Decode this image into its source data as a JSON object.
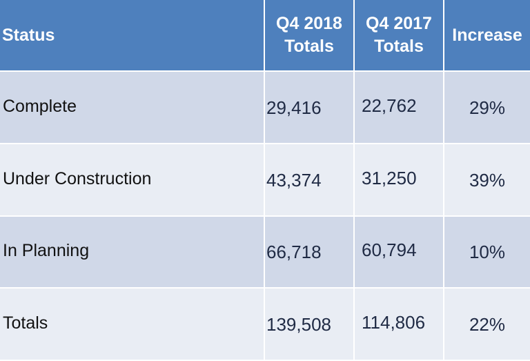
{
  "table": {
    "headers": {
      "status": "Status",
      "q4_2018": [
        "Q4 2018",
        "Totals"
      ],
      "q4_2017": [
        "Q4 2017",
        "Totals"
      ],
      "increase": "Increase"
    },
    "rows": [
      {
        "status": "Complete",
        "q4_2018": "29,416",
        "q4_2017": "22,762",
        "increase": "29%"
      },
      {
        "status": "Under Construction",
        "q4_2018": "43,374",
        "q4_2017": "31,250",
        "increase": "39%"
      },
      {
        "status": "In Planning",
        "q4_2018": "66,718",
        "q4_2017": "60,794",
        "increase": "10%"
      },
      {
        "status": "Totals",
        "q4_2018": "139,508",
        "q4_2017": "114,806",
        "increase": "22%"
      }
    ]
  },
  "colors": {
    "header_bg": "#4e80bd",
    "row_dark": "#d0d8e8",
    "row_light": "#e9edf4"
  }
}
